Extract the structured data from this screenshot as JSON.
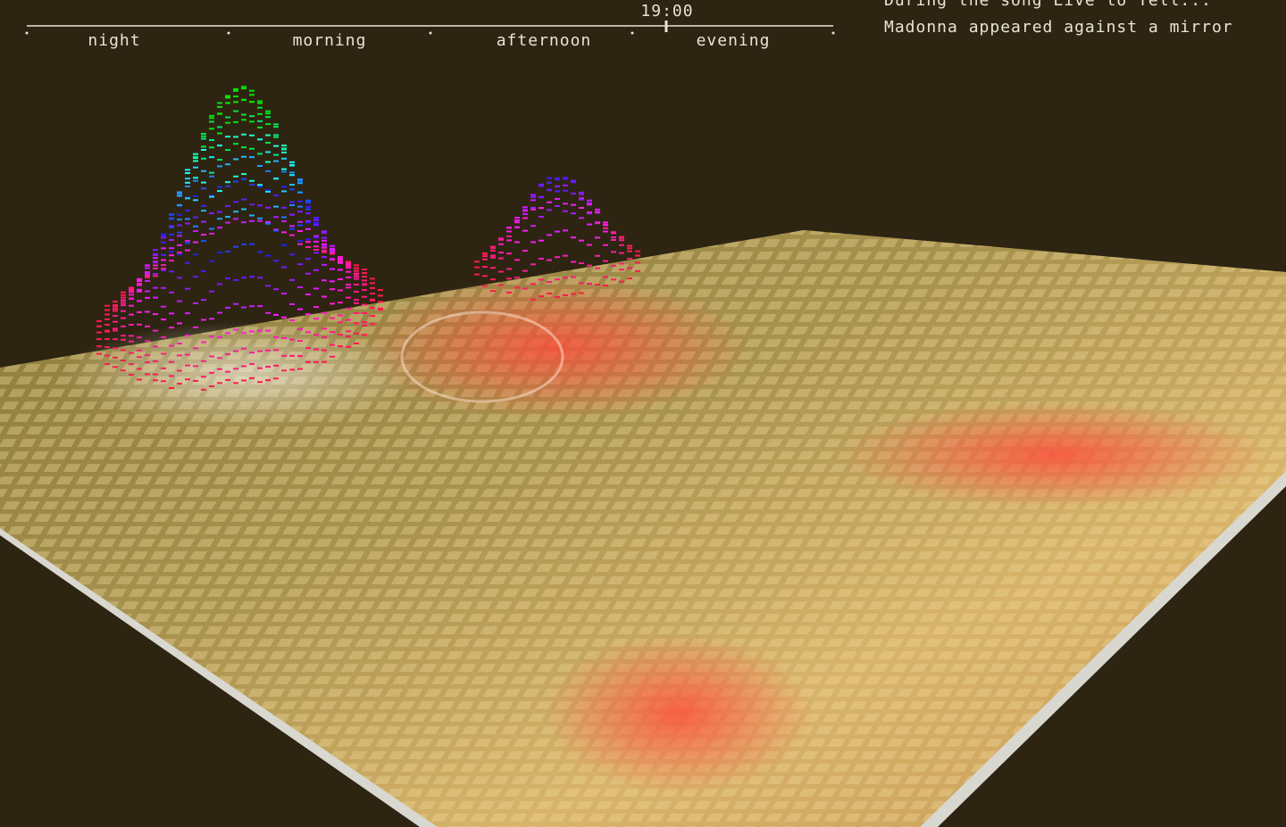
{
  "timeline": {
    "time": "19:00",
    "periods": [
      "night",
      "morning",
      "afternoon",
      "evening"
    ]
  },
  "caption": {
    "lines": [
      "During the song Live to Tell...",
      "Madonna appeared against a mirror"
    ]
  }
}
